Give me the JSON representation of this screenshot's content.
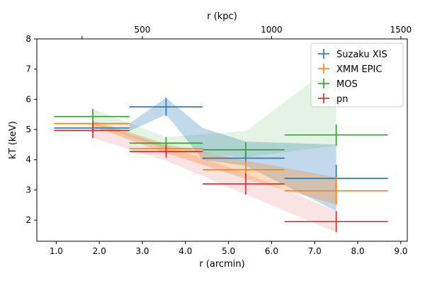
{
  "chart_data": {
    "type": "scatter",
    "xlabel": "r (arcmin)",
    "ylabel": "kT (keV)",
    "x2label": "r (kpc)",
    "xlim": [
      0.55,
      9.15
    ],
    "ylim": [
      1.3,
      8.0
    ],
    "x_ticks": [
      1.0,
      2.0,
      3.0,
      4.0,
      5.0,
      6.0,
      7.0,
      8.0,
      9.0
    ],
    "x_tick_labels": [
      "1.0",
      "2.0",
      "3.0",
      "4.0",
      "5.0",
      "6.0",
      "7.0",
      "8.0",
      "9.0"
    ],
    "y_ticks": [
      2,
      3,
      4,
      5,
      6,
      7,
      8
    ],
    "y_tick_labels": [
      "2",
      "3",
      "4",
      "5",
      "6",
      "7",
      "8"
    ],
    "top_ticks": [
      {
        "at_arcmin": 1.6,
        "label": ""
      },
      {
        "at_arcmin": 3.0,
        "label": "500"
      },
      {
        "at_arcmin": 6.0,
        "label": "1000"
      },
      {
        "at_arcmin": 9.0,
        "label": "1500"
      }
    ],
    "legend_position": "top-right",
    "series": [
      {
        "name": "Suzaku XIS",
        "color": "#1f77b4",
        "points": [
          {
            "x": 1.85,
            "xerr": [
              0.9,
              0.85
            ],
            "y": 5.05,
            "yerr": [
              0.15,
              0.15
            ]
          },
          {
            "x": 3.55,
            "xerr": [
              0.85,
              0.85
            ],
            "y": 5.75,
            "yerr": [
              0.3,
              0.3
            ]
          },
          {
            "x": 5.4,
            "xerr": [
              1.0,
              0.9
            ],
            "y": 4.05,
            "yerr": [
              0.2,
              0.2
            ]
          },
          {
            "x": 7.5,
            "xerr": [
              1.2,
              1.2
            ],
            "y": 3.38,
            "yerr": [
              0.45,
              0.45
            ]
          }
        ],
        "band": {
          "x": [
            2.7,
            3.55,
            4.4,
            5.4,
            7.5
          ],
          "lower": [
            4.95,
            5.5,
            4.0,
            3.8,
            2.3
          ],
          "upper": [
            5.2,
            6.05,
            5.05,
            4.6,
            4.5
          ]
        }
      },
      {
        "name": "XMM EPIC",
        "color": "#ff7f0e",
        "points": [
          {
            "x": 1.85,
            "xerr": [
              0.9,
              0.85
            ],
            "y": 5.2,
            "yerr": [
              0.1,
              0.1
            ]
          },
          {
            "x": 3.55,
            "xerr": [
              0.85,
              0.85
            ],
            "y": 4.37,
            "yerr": [
              0.15,
              0.15
            ]
          },
          {
            "x": 5.4,
            "xerr": [
              1.0,
              0.9
            ],
            "y": 3.67,
            "yerr": [
              0.3,
              0.3
            ]
          },
          {
            "x": 7.5,
            "xerr": [
              1.2,
              1.2
            ],
            "y": 2.97,
            "yerr": [
              0.45,
              0.45
            ]
          }
        ],
        "band": {
          "x": [
            1.85,
            3.55,
            5.4,
            7.5
          ],
          "lower": [
            5.1,
            4.22,
            3.37,
            2.52
          ],
          "upper": [
            5.3,
            4.52,
            3.97,
            3.42
          ]
        }
      },
      {
        "name": "MOS",
        "color": "#2ca02c",
        "points": [
          {
            "x": 1.85,
            "xerr": [
              0.9,
              0.85
            ],
            "y": 5.43,
            "yerr": [
              0.25,
              0.25
            ]
          },
          {
            "x": 3.55,
            "xerr": [
              0.85,
              0.85
            ],
            "y": 4.55,
            "yerr": [
              0.2,
              0.2
            ]
          },
          {
            "x": 5.4,
            "xerr": [
              1.0,
              0.9
            ],
            "y": 4.33,
            "yerr": [
              0.25,
              0.25
            ]
          },
          {
            "x": 7.5,
            "xerr": [
              1.2,
              1.2
            ],
            "y": 4.82,
            "yerr": [
              0.35,
              0.35
            ]
          }
        ],
        "band": {
          "x": [
            1.85,
            3.55,
            5.4,
            7.5
          ],
          "lower": [
            5.18,
            4.35,
            4.08,
            4.47
          ],
          "upper": [
            5.68,
            4.75,
            4.95,
            7.2
          ]
        }
      },
      {
        "name": "pn",
        "color": "#d62728",
        "points": [
          {
            "x": 1.85,
            "xerr": [
              0.9,
              0.85
            ],
            "y": 4.97,
            "yerr": [
              0.25,
              0.25
            ]
          },
          {
            "x": 3.55,
            "xerr": [
              0.85,
              0.85
            ],
            "y": 4.27,
            "yerr": [
              0.2,
              0.2
            ]
          },
          {
            "x": 5.4,
            "xerr": [
              1.0,
              0.9
            ],
            "y": 3.2,
            "yerr": [
              0.35,
              0.35
            ]
          },
          {
            "x": 7.5,
            "xerr": [
              1.2,
              1.2
            ],
            "y": 1.95,
            "yerr": [
              0.35,
              0.35
            ]
          }
        ],
        "band": {
          "x": [
            1.85,
            3.55,
            5.4,
            7.5
          ],
          "lower": [
            4.72,
            3.97,
            2.85,
            1.6
          ],
          "upper": [
            5.22,
            4.47,
            3.55,
            2.3
          ]
        }
      }
    ]
  }
}
